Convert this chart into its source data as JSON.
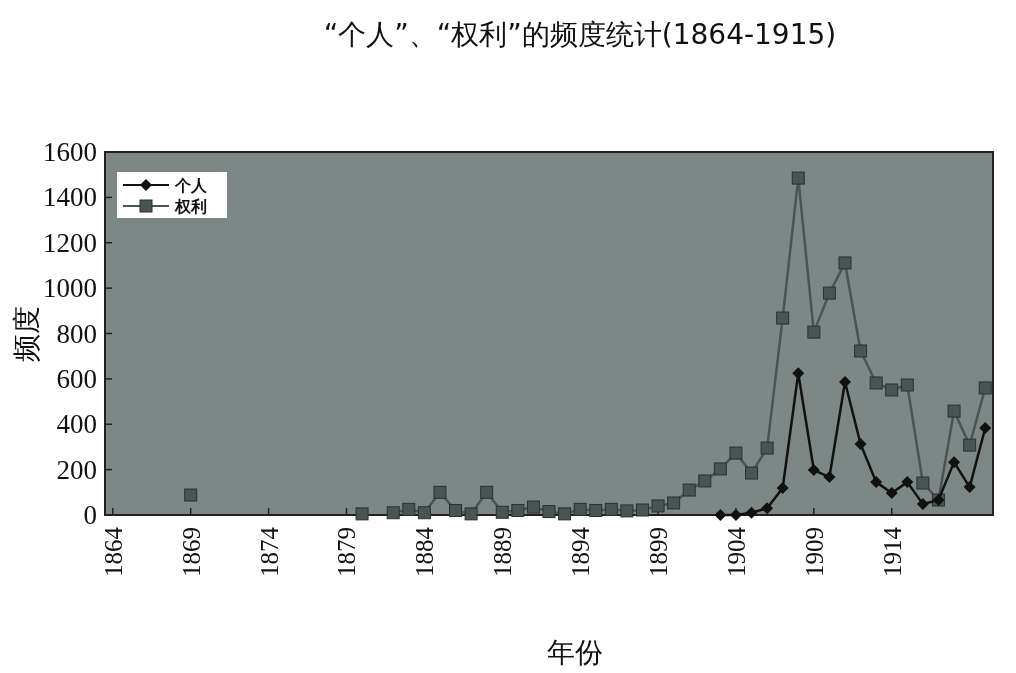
{
  "chart_data": {
    "type": "line",
    "title": "“个人”、“权利”的频度统计(1864-1915)",
    "xlabel": "年份",
    "ylabel": "频度",
    "xlim": [
      1863.5,
      1920.5
    ],
    "ylim": [
      0,
      1600
    ],
    "xticks": [
      1864,
      1869,
      1874,
      1879,
      1884,
      1889,
      1894,
      1899,
      1904,
      1909,
      1914
    ],
    "yticks": [
      0,
      200,
      400,
      600,
      800,
      1000,
      1200,
      1400,
      1600
    ],
    "legend": "top left",
    "line_style": "solid",
    "series": [
      {
        "name": "个人",
        "color": "#111111",
        "marker": "diamond",
        "x": [
          1903,
          1904,
          1905,
          1906,
          1907,
          1908,
          1909,
          1910,
          1911,
          1912,
          1913,
          1914,
          1915,
          1916,
          1917,
          1918,
          1919,
          1920
        ],
        "values": [
          0,
          0,
          10,
          30,
          119,
          625,
          198,
          167,
          586,
          313,
          145,
          97,
          145,
          48,
          66,
          233,
          123,
          383
        ]
      },
      {
        "name": "权利",
        "color": "#4a5452",
        "marker": "square",
        "x": [
          1869,
          1870,
          1871,
          1872,
          1873,
          1874,
          1875,
          1876,
          1877,
          1878,
          1879,
          1880,
          1881,
          1882,
          1883,
          1884,
          1885,
          1886,
          1887,
          1888,
          1889,
          1890,
          1891,
          1892,
          1893,
          1894,
          1895,
          1896,
          1897,
          1898,
          1899,
          1900,
          1901,
          1902,
          1903,
          1904,
          1905,
          1906,
          1907,
          1908,
          1909,
          1910,
          1911,
          1912,
          1913,
          1914,
          1915,
          1916,
          1917,
          1918,
          1919,
          1920
        ],
        "values": [
          88,
          null,
          null,
          null,
          null,
          null,
          null,
          null,
          null,
          null,
          null,
          5,
          null,
          10,
          25,
          10,
          100,
          20,
          5,
          100,
          12,
          20,
          35,
          15,
          5,
          25,
          20,
          25,
          18,
          22,
          40,
          53,
          110,
          150,
          203,
          273,
          185,
          295,
          868,
          1485,
          806,
          978,
          1111,
          723,
          582,
          551,
          573,
          141,
          66,
          458,
          308,
          560
        ]
      }
    ]
  }
}
